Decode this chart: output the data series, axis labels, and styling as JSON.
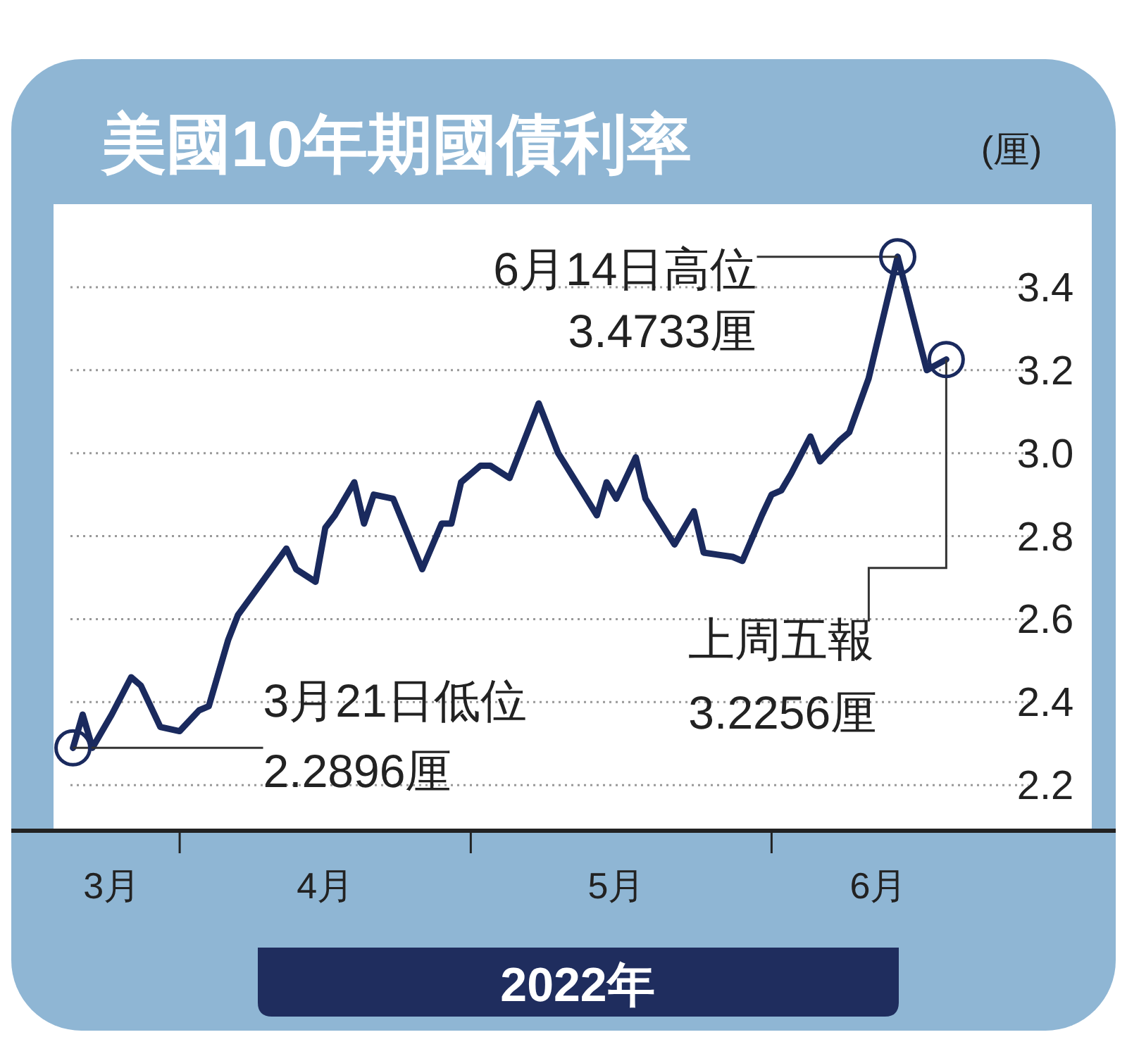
{
  "chart_data": {
    "type": "line",
    "title": "美國10年期國債利率",
    "ylabel": "(厘)",
    "xlabel": "2022年",
    "x": [
      "2022-03-21",
      "2022-03-22",
      "2022-03-23",
      "2022-03-25",
      "2022-03-27",
      "2022-03-28",
      "2022-03-30",
      "2022-04-01",
      "2022-04-03",
      "2022-04-04",
      "2022-04-06",
      "2022-04-07",
      "2022-04-12",
      "2022-04-13",
      "2022-04-15",
      "2022-04-16",
      "2022-04-17",
      "2022-04-19",
      "2022-04-20",
      "2022-04-21",
      "2022-04-23",
      "2022-04-26",
      "2022-04-28",
      "2022-04-29",
      "2022-04-30",
      "2022-05-02",
      "2022-05-03",
      "2022-05-05",
      "2022-05-08",
      "2022-05-10",
      "2022-05-14",
      "2022-05-15",
      "2022-05-16",
      "2022-05-18",
      "2022-05-19",
      "2022-05-22",
      "2022-05-24",
      "2022-05-25",
      "2022-05-28",
      "2022-05-29",
      "2022-05-31",
      "2022-06-01",
      "2022-06-02",
      "2022-06-03",
      "2022-06-05",
      "2022-06-06",
      "2022-06-08",
      "2022-06-09",
      "2022-06-11",
      "2022-06-14",
      "2022-06-16",
      "2022-06-17",
      "2022-06-19"
    ],
    "series": [
      {
        "color": "#1a2a5e",
        "values": [
          2.2896,
          2.37,
          2.29,
          2.37,
          2.46,
          2.44,
          2.34,
          2.33,
          2.38,
          2.39,
          2.55,
          2.61,
          2.77,
          2.72,
          2.69,
          2.82,
          2.85,
          2.93,
          2.83,
          2.9,
          2.89,
          2.72,
          2.83,
          2.83,
          2.93,
          2.97,
          2.97,
          2.94,
          3.12,
          3.0,
          2.85,
          2.93,
          2.89,
          2.99,
          2.89,
          2.78,
          2.86,
          2.76,
          2.75,
          2.74,
          2.85,
          2.9,
          2.91,
          2.95,
          3.04,
          2.98,
          3.03,
          3.05,
          3.18,
          3.4733,
          3.29,
          3.2,
          3.2256
        ]
      }
    ],
    "xlim": [
      "2022-03-19",
      "2022-07-04"
    ],
    "xticks": [
      {
        "value": "2022-03-25",
        "label": "3月"
      },
      {
        "value": "2022-04-01",
        "label": null
      },
      {
        "value": "2022-04-16",
        "label": "4月"
      },
      {
        "value": "2022-05-01",
        "label": null
      },
      {
        "value": "2022-05-16",
        "label": "5月"
      },
      {
        "value": "2022-06-01",
        "label": null
      },
      {
        "value": "2022-06-12",
        "label": "6月"
      }
    ],
    "ylim": [
      2.09,
      3.6
    ],
    "yticks": [
      {
        "value": 2.2,
        "label": "2.2"
      },
      {
        "value": 2.4,
        "label": "2.4"
      },
      {
        "value": 2.6,
        "label": "2.6"
      },
      {
        "value": 2.8,
        "label": "2.8"
      },
      {
        "value": 3.0,
        "label": "3.0"
      },
      {
        "value": 3.2,
        "label": "3.2"
      },
      {
        "value": 3.4,
        "label": "3.4"
      }
    ],
    "grid": "y",
    "annotations": [
      {
        "text": "6月14日高位\n3.4733厘",
        "x": "2022-06-14",
        "y": 3.4733
      },
      {
        "text": "3月21日低位\n2.2896厘",
        "x": "2022-03-21",
        "y": 2.2896
      },
      {
        "text": "上周五報\n3.2256厘",
        "x": "2022-06-19",
        "y": 3.2256
      }
    ]
  }
}
